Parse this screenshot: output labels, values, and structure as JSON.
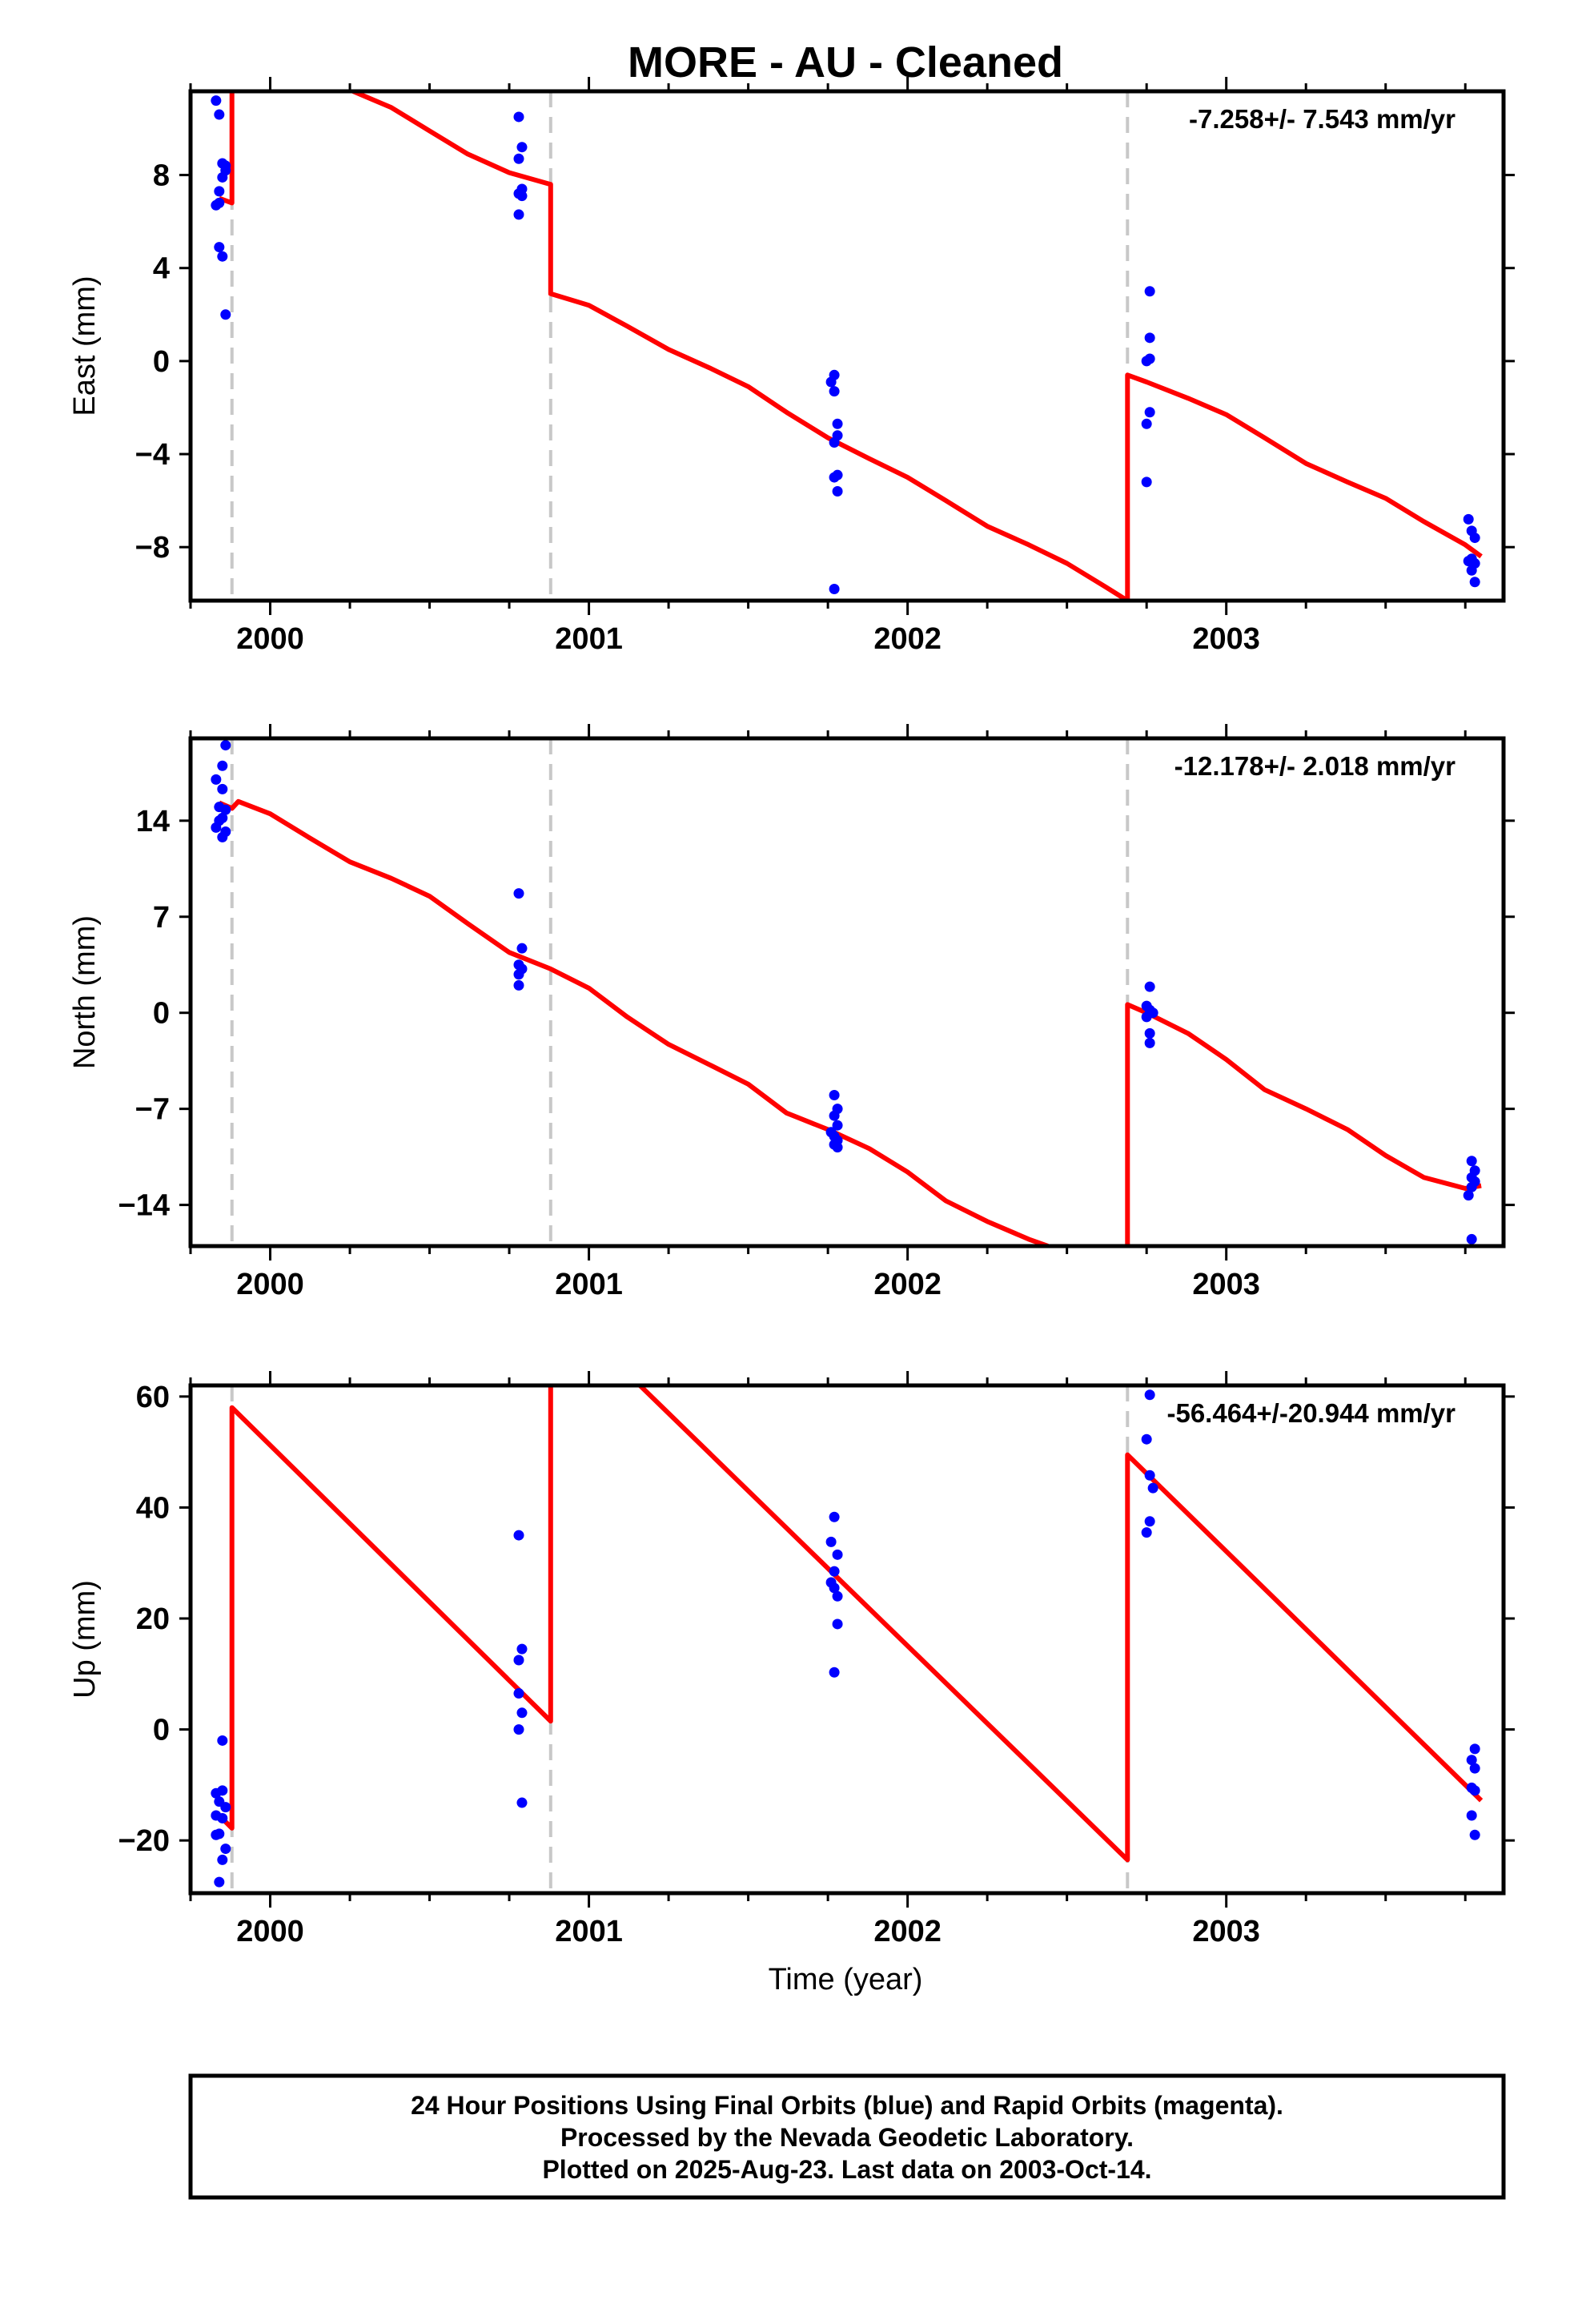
{
  "title": "MORE  - AU - Cleaned",
  "xlabel": "Time (year)",
  "footer": {
    "line1": "24 Hour Positions Using Final Orbits (blue) and Rapid Orbits (magenta).",
    "line2": "Processed by the Nevada Geodetic Laboratory.",
    "line3": "Plotted on 2025-Aug-23. Last data on 2003-Oct-14."
  },
  "colors": {
    "points": "#0000ff",
    "model": "#ff0000",
    "breaks": "#c8c8c8",
    "frame": "#000000"
  },
  "chart_data": [
    {
      "type": "scatter",
      "name": "east",
      "ylabel": "East (mm)",
      "rate_label": "-7.258+/- 7.543 mm/yr",
      "xlim": [
        1999.75,
        2003.87
      ],
      "ylim": [
        -10.3,
        11.6
      ],
      "yticks": [
        8,
        4,
        0,
        -4,
        -8
      ],
      "ytick_labels": [
        "8",
        "4",
        "0",
        "−4",
        "−8"
      ],
      "xticks": [
        2000,
        2001,
        2002,
        2003
      ],
      "breaks": [
        1999.88,
        2000.88,
        2002.69
      ],
      "points": [
        [
          1999.83,
          11.2
        ],
        [
          1999.84,
          10.6
        ],
        [
          1999.85,
          8.5
        ],
        [
          1999.86,
          8.4
        ],
        [
          1999.84,
          7.3
        ],
        [
          1999.85,
          7.9
        ],
        [
          1999.86,
          8.2
        ],
        [
          1999.84,
          6.8
        ],
        [
          1999.83,
          6.7
        ],
        [
          1999.84,
          4.9
        ],
        [
          1999.85,
          4.5
        ],
        [
          1999.86,
          2.0
        ],
        [
          2000.78,
          10.5
        ],
        [
          2000.79,
          9.2
        ],
        [
          2000.78,
          8.7
        ],
        [
          2000.79,
          7.4
        ],
        [
          2000.78,
          7.2
        ],
        [
          2000.79,
          7.1
        ],
        [
          2000.78,
          6.3
        ],
        [
          2001.77,
          -0.6
        ],
        [
          2001.76,
          -0.9
        ],
        [
          2001.77,
          -1.3
        ],
        [
          2001.78,
          -2.7
        ],
        [
          2001.78,
          -3.2
        ],
        [
          2001.77,
          -3.5
        ],
        [
          2001.78,
          -4.9
        ],
        [
          2001.77,
          -5.0
        ],
        [
          2001.78,
          -5.6
        ],
        [
          2001.77,
          -9.8
        ],
        [
          2002.76,
          3.0
        ],
        [
          2002.76,
          1.0
        ],
        [
          2002.75,
          0.0
        ],
        [
          2002.76,
          0.1
        ],
        [
          2002.76,
          -2.2
        ],
        [
          2002.75,
          -2.7
        ],
        [
          2002.75,
          -5.2
        ],
        [
          2003.76,
          -6.8
        ],
        [
          2003.77,
          -7.3
        ],
        [
          2003.78,
          -7.6
        ],
        [
          2003.77,
          -8.5
        ],
        [
          2003.78,
          -8.7
        ],
        [
          2003.76,
          -8.6
        ],
        [
          2003.77,
          -9.0
        ],
        [
          2003.78,
          -9.5
        ]
      ],
      "model": [
        [
          1999.84,
          7.0
        ],
        [
          1999.88,
          6.8
        ],
        [
          1999.88,
          11.6
        ]
      ],
      "model2": [
        [
          2000.26,
          11.6
        ],
        [
          2000.38,
          10.9
        ],
        [
          2000.5,
          9.9
        ],
        [
          2000.62,
          8.9
        ],
        [
          2000.75,
          8.1
        ],
        [
          2000.88,
          7.6
        ],
        [
          2000.88,
          2.9
        ],
        [
          2001.0,
          2.4
        ],
        [
          2001.12,
          1.5
        ],
        [
          2001.25,
          0.5
        ],
        [
          2001.38,
          -0.3
        ],
        [
          2001.5,
          -1.1
        ],
        [
          2001.62,
          -2.2
        ],
        [
          2001.75,
          -3.3
        ],
        [
          2001.88,
          -4.2
        ],
        [
          2002.0,
          -5.0
        ],
        [
          2002.12,
          -6.0
        ],
        [
          2002.25,
          -7.1
        ],
        [
          2002.38,
          -7.9
        ],
        [
          2002.5,
          -8.7
        ],
        [
          2002.62,
          -9.7
        ],
        [
          2002.69,
          -10.3
        ]
      ],
      "model3": [
        [
          2002.69,
          -10.3
        ],
        [
          2002.69,
          -0.6
        ],
        [
          2002.75,
          -0.9
        ],
        [
          2002.88,
          -1.6
        ],
        [
          2003.0,
          -2.3
        ],
        [
          2003.12,
          -3.3
        ],
        [
          2003.25,
          -4.4
        ],
        [
          2003.38,
          -5.2
        ],
        [
          2003.5,
          -5.9
        ],
        [
          2003.62,
          -6.9
        ],
        [
          2003.75,
          -7.9
        ],
        [
          2003.8,
          -8.4
        ]
      ]
    },
    {
      "type": "scatter",
      "name": "north",
      "ylabel": "North (mm)",
      "rate_label": "-12.178+/- 2.018 mm/yr",
      "xlim": [
        1999.75,
        2003.87
      ],
      "ylim": [
        -17.0,
        20.0
      ],
      "yticks": [
        14,
        7,
        0,
        -7,
        -14
      ],
      "ytick_labels": [
        "14",
        "7",
        "0",
        "−7",
        "−14"
      ],
      "xticks": [
        2000,
        2001,
        2002,
        2003
      ],
      "breaks": [
        1999.88,
        2000.88,
        2002.69
      ],
      "points": [
        [
          1999.86,
          19.5
        ],
        [
          1999.85,
          18.0
        ],
        [
          1999.83,
          17.0
        ],
        [
          1999.85,
          16.3
        ],
        [
          1999.84,
          15.0
        ],
        [
          1999.86,
          14.8
        ],
        [
          1999.85,
          14.2
        ],
        [
          1999.84,
          14.0
        ],
        [
          1999.83,
          13.5
        ],
        [
          1999.86,
          13.2
        ],
        [
          1999.85,
          12.8
        ],
        [
          2000.78,
          8.7
        ],
        [
          2000.79,
          4.7
        ],
        [
          2000.78,
          3.5
        ],
        [
          2000.79,
          3.2
        ],
        [
          2000.78,
          2.8
        ],
        [
          2000.78,
          2.0
        ],
        [
          2001.77,
          -6.0
        ],
        [
          2001.78,
          -7.0
        ],
        [
          2001.77,
          -7.5
        ],
        [
          2001.78,
          -8.2
        ],
        [
          2001.76,
          -8.7
        ],
        [
          2001.77,
          -9.0
        ],
        [
          2001.78,
          -9.3
        ],
        [
          2001.77,
          -9.6
        ],
        [
          2001.78,
          -9.8
        ],
        [
          2002.76,
          1.9
        ],
        [
          2002.75,
          0.5
        ],
        [
          2002.76,
          0.2
        ],
        [
          2002.77,
          0.0
        ],
        [
          2002.75,
          -0.3
        ],
        [
          2002.76,
          -1.5
        ],
        [
          2002.76,
          -2.2
        ],
        [
          2003.77,
          -10.8
        ],
        [
          2003.78,
          -11.5
        ],
        [
          2003.77,
          -12.0
        ],
        [
          2003.78,
          -12.3
        ],
        [
          2003.77,
          -12.7
        ],
        [
          2003.76,
          -13.3
        ],
        [
          2003.77,
          -16.5
        ]
      ],
      "model": [
        [
          1999.84,
          15.3
        ],
        [
          1999.88,
          14.9
        ],
        [
          1999.9,
          15.4
        ],
        [
          2000.0,
          14.5
        ],
        [
          2000.12,
          12.8
        ],
        [
          2000.25,
          11.0
        ],
        [
          2000.38,
          9.8
        ],
        [
          2000.5,
          8.5
        ],
        [
          2000.62,
          6.5
        ],
        [
          2000.75,
          4.4
        ],
        [
          2000.88,
          3.2
        ],
        [
          2001.0,
          1.8
        ],
        [
          2001.12,
          -0.3
        ],
        [
          2001.25,
          -2.3
        ],
        [
          2001.38,
          -3.8
        ],
        [
          2001.5,
          -5.2
        ],
        [
          2001.62,
          -7.3
        ],
        [
          2001.75,
          -8.5
        ],
        [
          2001.88,
          -9.9
        ],
        [
          2002.0,
          -11.6
        ],
        [
          2002.12,
          -13.7
        ],
        [
          2002.25,
          -15.2
        ],
        [
          2002.38,
          -16.5
        ],
        [
          2002.44,
          -17.0
        ]
      ],
      "model3": [
        [
          2002.69,
          -17.0
        ],
        [
          2002.69,
          0.6
        ],
        [
          2002.75,
          0.0
        ],
        [
          2002.88,
          -1.5
        ],
        [
          2003.0,
          -3.4
        ],
        [
          2003.12,
          -5.6
        ],
        [
          2003.25,
          -7.0
        ],
        [
          2003.38,
          -8.5
        ],
        [
          2003.5,
          -10.4
        ],
        [
          2003.62,
          -12.0
        ],
        [
          2003.75,
          -12.8
        ],
        [
          2003.8,
          -12.6
        ]
      ]
    },
    {
      "type": "scatter",
      "name": "up",
      "ylabel": "Up (mm)",
      "rate_label": "-56.464+/-20.944 mm/yr",
      "xlim": [
        1999.75,
        2003.87
      ],
      "ylim": [
        -29.5,
        62.0
      ],
      "yticks": [
        60,
        40,
        20,
        0,
        -20
      ],
      "ytick_labels": [
        "60",
        "40",
        "20",
        "0",
        "−20"
      ],
      "xticks": [
        2000,
        2001,
        2002,
        2003
      ],
      "breaks": [
        1999.88,
        2000.88,
        2002.69
      ],
      "points": [
        [
          1999.85,
          -2.0
        ],
        [
          1999.83,
          -11.5
        ],
        [
          1999.85,
          -11.0
        ],
        [
          1999.84,
          -13.0
        ],
        [
          1999.86,
          -14.0
        ],
        [
          1999.83,
          -15.5
        ],
        [
          1999.85,
          -16.0
        ],
        [
          1999.84,
          -18.8
        ],
        [
          1999.83,
          -19.0
        ],
        [
          1999.86,
          -21.5
        ],
        [
          1999.85,
          -23.5
        ],
        [
          1999.84,
          -27.5
        ],
        [
          2000.78,
          35.0
        ],
        [
          2000.79,
          14.5
        ],
        [
          2000.78,
          12.5
        ],
        [
          2000.78,
          6.5
        ],
        [
          2000.79,
          3.0
        ],
        [
          2000.78,
          0.0
        ],
        [
          2000.79,
          -13.2
        ],
        [
          2001.77,
          38.3
        ],
        [
          2001.76,
          33.8
        ],
        [
          2001.78,
          31.5
        ],
        [
          2001.77,
          28.5
        ],
        [
          2001.76,
          26.5
        ],
        [
          2001.77,
          25.5
        ],
        [
          2001.78,
          24.0
        ],
        [
          2001.78,
          19.0
        ],
        [
          2001.77,
          10.3
        ],
        [
          2002.76,
          60.3
        ],
        [
          2002.75,
          52.3
        ],
        [
          2002.76,
          45.8
        ],
        [
          2002.77,
          43.5
        ],
        [
          2002.76,
          37.5
        ],
        [
          2002.75,
          35.5
        ],
        [
          2003.78,
          -3.5
        ],
        [
          2003.77,
          -5.5
        ],
        [
          2003.78,
          -7.0
        ],
        [
          2003.77,
          -10.5
        ],
        [
          2003.78,
          -11.0
        ],
        [
          2003.77,
          -15.5
        ],
        [
          2003.78,
          -19.0
        ]
      ],
      "model": [
        [
          1999.84,
          -15.5
        ],
        [
          1999.88,
          -17.8
        ],
        [
          1999.88,
          58.0
        ],
        [
          2000.88,
          1.5
        ],
        [
          2000.88,
          62.0
        ]
      ],
      "model2": [
        [
          2001.16,
          62.0
        ],
        [
          2002.69,
          -23.5
        ],
        [
          2002.69,
          49.5
        ],
        [
          2003.8,
          -12.8
        ]
      ]
    }
  ]
}
